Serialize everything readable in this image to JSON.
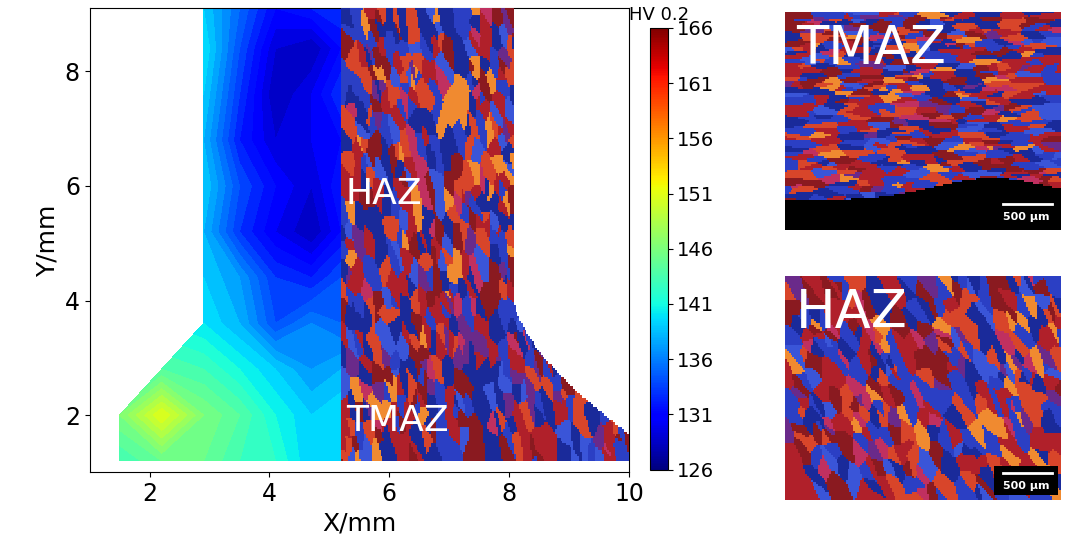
{
  "chart_data": {
    "type": "heatmap",
    "xlabel": "X/mm",
    "ylabel": "Y/mm",
    "xlim": [
      1,
      10
    ],
    "ylim": [
      1,
      9.1
    ],
    "xticks": [
      2,
      4,
      6,
      8,
      10
    ],
    "yticks": [
      2,
      4,
      6,
      8
    ],
    "x": [
      1.5,
      2.2,
      2.9,
      3.5,
      4.1,
      4.7,
      5.2
    ],
    "y": [
      1.2,
      2.0,
      2.8,
      3.6,
      4.4,
      5.2,
      6.0,
      6.8,
      7.6,
      8.4,
      9.1
    ],
    "cells": [
      [
        143,
        145,
        145,
        143,
        142,
        139,
        140
      ],
      [
        146,
        151,
        146,
        144,
        141,
        139,
        140
      ],
      [
        null,
        144,
        143,
        141,
        139,
        137,
        138
      ],
      [
        null,
        null,
        140,
        138,
        134,
        136,
        135
      ],
      [
        null,
        null,
        139,
        137,
        133,
        132,
        134
      ],
      [
        null,
        null,
        138,
        133,
        130,
        128,
        131
      ],
      [
        null,
        null,
        139,
        134,
        131,
        129,
        132
      ],
      [
        null,
        null,
        138,
        132,
        129,
        130,
        131
      ],
      [
        null,
        null,
        139,
        133,
        128,
        130,
        133
      ],
      [
        null,
        null,
        140,
        134,
        129,
        128,
        131
      ],
      [
        null,
        null,
        139,
        135,
        131,
        132,
        133
      ]
    ],
    "colorbar": {
      "title": "HV 0.2",
      "range": [
        126,
        166
      ],
      "ticks": [
        126,
        131,
        136,
        141,
        146,
        151,
        156,
        161,
        166
      ]
    },
    "annotations": [
      "HAZ",
      "TMAZ"
    ]
  },
  "panels": [
    {
      "label": "TMAZ",
      "scale_bar": "500 µm"
    },
    {
      "label": "HAZ",
      "scale_bar": "500 µm"
    }
  ]
}
